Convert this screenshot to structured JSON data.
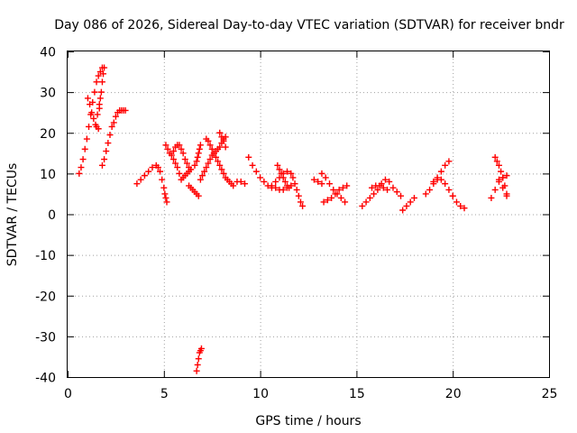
{
  "chart_data": {
    "type": "scatter",
    "title": "Day 086 of 2026, Sidereal Day-to-day VTEC variation (SDTVAR) for receiver bndr",
    "xlabel": "GPS time / hours",
    "ylabel": "SDTVAR / TECUs",
    "xlim": [
      0,
      25
    ],
    "ylim": [
      -40,
      40
    ],
    "xticks": [
      0,
      5,
      10,
      15,
      20,
      25
    ],
    "yticks": [
      -40,
      -30,
      -20,
      -10,
      0,
      10,
      20,
      30,
      40
    ],
    "grid": true,
    "marker": "+",
    "color": "#ff0000",
    "series": [
      {
        "name": "SDTVAR",
        "x": [
          0.6,
          0.7,
          0.8,
          0.9,
          1.0,
          1.1,
          1.2,
          1.3,
          1.4,
          1.5,
          1.6,
          1.7,
          1.8,
          1.05,
          1.15,
          1.25,
          1.35,
          1.45,
          1.55,
          1.65,
          1.75,
          1.8,
          1.85,
          1.9,
          1.5,
          1.6,
          1.65,
          1.7,
          1.8,
          1.9,
          2.0,
          2.1,
          2.2,
          2.3,
          2.4,
          2.5,
          2.6,
          2.7,
          2.8,
          2.9,
          3.0,
          3.6,
          3.8,
          4.0,
          4.2,
          4.4,
          4.6,
          4.7,
          4.8,
          4.9,
          5.0,
          5.05,
          5.1,
          5.15,
          5.1,
          5.2,
          5.3,
          5.4,
          5.5,
          5.6,
          5.7,
          5.8,
          5.9,
          6.0,
          6.1,
          6.2,
          6.3,
          6.4,
          5.5,
          5.6,
          5.7,
          5.8,
          5.9,
          6.0,
          6.1,
          6.2,
          6.3,
          6.3,
          6.4,
          6.5,
          6.6,
          6.7,
          6.8,
          6.6,
          6.7,
          6.75,
          6.8,
          6.85,
          6.9,
          6.9,
          7.0,
          7.1,
          7.2,
          7.3,
          7.4,
          7.5,
          7.6,
          7.7,
          7.8,
          7.9,
          8.0,
          8.1,
          8.2,
          7.2,
          7.3,
          7.4,
          7.5,
          7.6,
          7.7,
          7.8,
          7.9,
          8.0,
          8.1,
          8.2,
          8.3,
          8.4,
          8.5,
          8.6,
          8.8,
          9.0,
          9.2,
          7.9,
          8.0,
          8.1,
          8.2,
          9.4,
          9.6,
          9.8,
          10.0,
          10.2,
          10.4,
          10.6,
          10.8,
          11.0,
          11.2,
          11.4,
          11.6,
          10.6,
          10.8,
          11.0,
          11.2,
          11.4,
          11.6,
          11.7,
          11.8,
          11.9,
          12.0,
          12.1,
          12.2,
          10.9,
          11.0,
          11.1,
          11.2,
          11.3,
          11.4,
          11.5,
          12.8,
          13.0,
          13.2,
          13.2,
          13.4,
          13.6,
          13.8,
          14.0,
          14.2,
          14.4,
          13.3,
          13.5,
          13.7,
          13.9,
          14.1,
          14.3,
          14.5,
          15.3,
          15.5,
          15.7,
          15.9,
          16.1,
          16.3,
          16.5,
          16.7,
          16.9,
          17.1,
          17.3,
          15.8,
          16.0,
          16.2,
          16.4,
          16.6,
          17.4,
          17.6,
          17.8,
          18.0,
          18.6,
          18.8,
          19.0,
          19.2,
          19.4,
          19.6,
          19.8,
          20.0,
          20.2,
          20.4,
          20.6,
          19.0,
          19.2,
          19.4,
          19.6,
          19.8,
          20.0,
          22.0,
          22.2,
          22.4,
          22.6,
          22.8,
          22.2,
          22.3,
          22.4,
          22.5,
          22.6,
          22.7,
          22.8,
          22.4,
          22.6,
          22.8,
          6.7,
          6.75,
          6.8,
          6.85,
          6.9,
          6.95
        ],
        "y": [
          10.0,
          11.5,
          13.5,
          16.0,
          18.5,
          21.5,
          24.5,
          27.5,
          30.0,
          32.5,
          34.0,
          35.0,
          36.0,
          28.5,
          27.0,
          25.0,
          23.5,
          22.0,
          24.5,
          27.0,
          30.0,
          32.5,
          34.5,
          36.0,
          21.5,
          21.0,
          26.0,
          28.5,
          12.0,
          13.5,
          15.5,
          17.5,
          19.5,
          21.5,
          22.5,
          24.0,
          25.0,
          25.5,
          25.5,
          25.5,
          25.5,
          7.5,
          8.5,
          9.5,
          10.5,
          11.5,
          12.0,
          11.5,
          10.5,
          8.5,
          6.5,
          5.0,
          4.0,
          3.0,
          17.0,
          16.0,
          15.0,
          14.5,
          13.5,
          12.5,
          11.5,
          10.0,
          8.5,
          9.0,
          9.5,
          10.0,
          10.5,
          11.0,
          15.5,
          16.5,
          17.0,
          17.0,
          16.0,
          15.0,
          13.5,
          12.5,
          11.5,
          7.0,
          6.5,
          6.0,
          5.5,
          5.0,
          4.5,
          12.0,
          13.0,
          14.0,
          15.0,
          16.0,
          17.0,
          8.5,
          9.5,
          10.5,
          11.5,
          12.5,
          13.5,
          14.5,
          15.0,
          15.5,
          16.0,
          16.5,
          17.5,
          18.5,
          19.0,
          18.5,
          18.0,
          17.0,
          16.0,
          15.0,
          14.0,
          13.0,
          12.0,
          11.0,
          10.0,
          9.0,
          8.5,
          8.0,
          7.5,
          7.0,
          8.0,
          8.0,
          7.5,
          20.0,
          19.0,
          18.0,
          16.5,
          14.0,
          12.0,
          10.5,
          9.0,
          8.0,
          7.0,
          6.5,
          6.5,
          6.0,
          6.0,
          6.5,
          7.0,
          7.0,
          8.0,
          9.0,
          10.0,
          10.5,
          10.0,
          9.0,
          7.5,
          6.0,
          4.5,
          3.0,
          2.0,
          12.0,
          11.0,
          10.0,
          9.0,
          8.0,
          7.0,
          6.5,
          8.5,
          8.0,
          7.5,
          10.0,
          9.0,
          7.5,
          6.0,
          5.0,
          4.0,
          3.0,
          3.0,
          3.5,
          4.0,
          5.0,
          6.0,
          6.5,
          7.0,
          2.0,
          3.0,
          4.0,
          5.0,
          6.0,
          7.5,
          8.5,
          8.0,
          6.5,
          5.5,
          4.5,
          6.5,
          7.0,
          7.0,
          6.5,
          6.0,
          1.0,
          2.0,
          3.0,
          4.0,
          5.0,
          6.0,
          7.5,
          9.0,
          10.5,
          12.0,
          13.0,
          4.5,
          3.0,
          2.0,
          1.5,
          8.0,
          8.5,
          8.5,
          7.5,
          6.0,
          4.5,
          4.0,
          6.0,
          8.0,
          9.0,
          9.5,
          14.0,
          13.0,
          12.0,
          10.5,
          9.0,
          7.0,
          5.0,
          8.5,
          6.5,
          4.5,
          -38.5,
          -37.0,
          -35.5,
          -34.0,
          -33.5,
          -33.0
        ]
      }
    ]
  }
}
